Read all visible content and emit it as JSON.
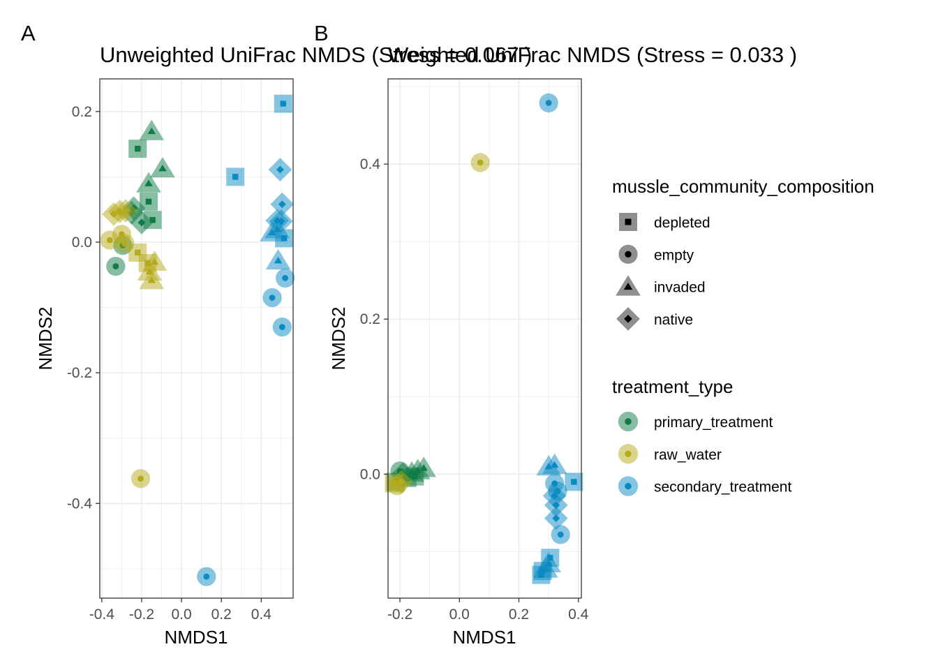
{
  "panel_labels": [
    "A",
    "B"
  ],
  "colors": {
    "primary_treatment": "#0f7b45",
    "raw_water": "#b5aa1c",
    "secondary_treatment": "#0b8bc3",
    "grid": "#ebebeb",
    "axis_text": "#4d4d4d"
  },
  "shape_icons": {
    "depleted": "square",
    "empty": "circle",
    "invaded": "triangle",
    "native": "diamond"
  },
  "legend": {
    "shape_title": "mussle_community_composition",
    "shape_items": [
      "depleted",
      "empty",
      "invaded",
      "native"
    ],
    "color_title": "treatment_type",
    "color_items": [
      "primary_treatment",
      "raw_water",
      "secondary_treatment"
    ]
  },
  "chart_data": [
    {
      "type": "scatter",
      "title": "Unweighted UniFrac NMDS (Stress = 0.067 )",
      "xlabel": "NMDS1",
      "ylabel": "NMDS2",
      "xlim": [
        -0.41,
        0.56
      ],
      "ylim": [
        -0.545,
        0.25
      ],
      "xticks": [
        -0.4,
        -0.2,
        0.0,
        0.2,
        0.4
      ],
      "xtick_labels": [
        "-0.4",
        "-0.2",
        "0.0",
        "0.2",
        "0.4"
      ],
      "yticks": [
        -0.4,
        -0.2,
        0.0,
        0.2
      ],
      "ytick_labels": [
        "-0.4",
        "-0.2",
        "0.0",
        "0.2"
      ],
      "grid": true,
      "points": [
        {
          "x": -0.22,
          "y": 0.143,
          "shape": "depleted",
          "treatment": "primary_treatment"
        },
        {
          "x": -0.15,
          "y": 0.17,
          "shape": "invaded",
          "treatment": "primary_treatment"
        },
        {
          "x": -0.095,
          "y": 0.113,
          "shape": "invaded",
          "treatment": "primary_treatment"
        },
        {
          "x": -0.165,
          "y": 0.09,
          "shape": "invaded",
          "treatment": "primary_treatment"
        },
        {
          "x": -0.165,
          "y": 0.062,
          "shape": "depleted",
          "treatment": "primary_treatment"
        },
        {
          "x": -0.24,
          "y": 0.052,
          "shape": "native",
          "treatment": "primary_treatment"
        },
        {
          "x": -0.25,
          "y": 0.045,
          "shape": "native",
          "treatment": "primary_treatment"
        },
        {
          "x": -0.2,
          "y": 0.03,
          "shape": "native",
          "treatment": "primary_treatment"
        },
        {
          "x": -0.145,
          "y": 0.034,
          "shape": "depleted",
          "treatment": "primary_treatment"
        },
        {
          "x": -0.33,
          "y": -0.037,
          "shape": "empty",
          "treatment": "primary_treatment"
        },
        {
          "x": -0.295,
          "y": -0.005,
          "shape": "empty",
          "treatment": "primary_treatment"
        },
        {
          "x": -0.36,
          "y": 0.003,
          "shape": "empty",
          "treatment": "raw_water"
        },
        {
          "x": -0.34,
          "y": 0.043,
          "shape": "native",
          "treatment": "raw_water"
        },
        {
          "x": -0.31,
          "y": 0.047,
          "shape": "native",
          "treatment": "raw_water"
        },
        {
          "x": -0.28,
          "y": 0.048,
          "shape": "native",
          "treatment": "raw_water"
        },
        {
          "x": -0.3,
          "y": 0.012,
          "shape": "empty",
          "treatment": "raw_water"
        },
        {
          "x": -0.285,
          "y": -0.002,
          "shape": "empty",
          "treatment": "raw_water"
        },
        {
          "x": -0.22,
          "y": -0.016,
          "shape": "depleted",
          "treatment": "raw_water"
        },
        {
          "x": -0.17,
          "y": -0.032,
          "shape": "depleted",
          "treatment": "raw_water"
        },
        {
          "x": -0.135,
          "y": -0.03,
          "shape": "invaded",
          "treatment": "raw_water"
        },
        {
          "x": -0.16,
          "y": -0.045,
          "shape": "invaded",
          "treatment": "raw_water"
        },
        {
          "x": -0.15,
          "y": -0.058,
          "shape": "invaded",
          "treatment": "raw_water"
        },
        {
          "x": -0.205,
          "y": -0.362,
          "shape": "empty",
          "treatment": "raw_water"
        },
        {
          "x": 0.51,
          "y": 0.212,
          "shape": "depleted",
          "treatment": "secondary_treatment"
        },
        {
          "x": 0.27,
          "y": 0.1,
          "shape": "depleted",
          "treatment": "secondary_treatment"
        },
        {
          "x": 0.495,
          "y": 0.111,
          "shape": "native",
          "treatment": "secondary_treatment"
        },
        {
          "x": 0.505,
          "y": 0.058,
          "shape": "native",
          "treatment": "secondary_treatment"
        },
        {
          "x": 0.48,
          "y": 0.033,
          "shape": "native",
          "treatment": "secondary_treatment"
        },
        {
          "x": 0.5,
          "y": 0.032,
          "shape": "native",
          "treatment": "secondary_treatment"
        },
        {
          "x": 0.455,
          "y": 0.015,
          "shape": "invaded",
          "treatment": "secondary_treatment"
        },
        {
          "x": 0.48,
          "y": 0.02,
          "shape": "invaded",
          "treatment": "secondary_treatment"
        },
        {
          "x": 0.515,
          "y": 0.006,
          "shape": "depleted",
          "treatment": "secondary_treatment"
        },
        {
          "x": 0.485,
          "y": -0.028,
          "shape": "invaded",
          "treatment": "secondary_treatment"
        },
        {
          "x": 0.52,
          "y": -0.055,
          "shape": "empty",
          "treatment": "secondary_treatment"
        },
        {
          "x": 0.455,
          "y": -0.085,
          "shape": "empty",
          "treatment": "secondary_treatment"
        },
        {
          "x": 0.505,
          "y": -0.13,
          "shape": "empty",
          "treatment": "secondary_treatment"
        },
        {
          "x": 0.125,
          "y": -0.512,
          "shape": "empty",
          "treatment": "secondary_treatment"
        }
      ]
    },
    {
      "type": "scatter",
      "title": "Weighted UniFrac NMDS (Stress = 0.033 )",
      "xlabel": "NMDS1",
      "ylabel": "NMDS2",
      "xlim": [
        -0.24,
        0.41
      ],
      "ylim": [
        -0.16,
        0.51
      ],
      "xticks": [
        -0.2,
        0.0,
        0.2,
        0.4
      ],
      "xtick_labels": [
        "-0.2",
        "0.0",
        "0.2",
        "0.4"
      ],
      "yticks": [
        0.0,
        0.2,
        0.4
      ],
      "ytick_labels": [
        "0.0",
        "0.2",
        "0.4"
      ],
      "grid": true,
      "points": [
        {
          "x": -0.12,
          "y": 0.008,
          "shape": "invaded",
          "treatment": "primary_treatment"
        },
        {
          "x": -0.14,
          "y": 0.005,
          "shape": "invaded",
          "treatment": "primary_treatment"
        },
        {
          "x": -0.16,
          "y": 0.002,
          "shape": "invaded",
          "treatment": "primary_treatment"
        },
        {
          "x": -0.15,
          "y": -0.003,
          "shape": "depleted",
          "treatment": "primary_treatment"
        },
        {
          "x": -0.175,
          "y": -0.005,
          "shape": "depleted",
          "treatment": "primary_treatment"
        },
        {
          "x": -0.19,
          "y": 0.0,
          "shape": "native",
          "treatment": "primary_treatment"
        },
        {
          "x": -0.2,
          "y": 0.004,
          "shape": "empty",
          "treatment": "primary_treatment"
        },
        {
          "x": -0.215,
          "y": -0.01,
          "shape": "depleted",
          "treatment": "primary_treatment"
        },
        {
          "x": -0.195,
          "y": -0.01,
          "shape": "native",
          "treatment": "raw_water"
        },
        {
          "x": -0.21,
          "y": -0.015,
          "shape": "empty",
          "treatment": "raw_water"
        },
        {
          "x": -0.22,
          "y": -0.012,
          "shape": "depleted",
          "treatment": "raw_water"
        },
        {
          "x": 0.07,
          "y": 0.402,
          "shape": "empty",
          "treatment": "raw_water"
        },
        {
          "x": 0.3,
          "y": 0.479,
          "shape": "empty",
          "treatment": "secondary_treatment"
        },
        {
          "x": 0.3,
          "y": 0.01,
          "shape": "invaded",
          "treatment": "secondary_treatment"
        },
        {
          "x": 0.32,
          "y": 0.012,
          "shape": "invaded",
          "treatment": "secondary_treatment"
        },
        {
          "x": 0.385,
          "y": -0.01,
          "shape": "depleted",
          "treatment": "secondary_treatment"
        },
        {
          "x": 0.32,
          "y": -0.012,
          "shape": "empty",
          "treatment": "secondary_treatment"
        },
        {
          "x": 0.33,
          "y": -0.022,
          "shape": "empty",
          "treatment": "secondary_treatment"
        },
        {
          "x": 0.32,
          "y": -0.028,
          "shape": "native",
          "treatment": "secondary_treatment"
        },
        {
          "x": 0.325,
          "y": -0.04,
          "shape": "native",
          "treatment": "secondary_treatment"
        },
        {
          "x": 0.325,
          "y": -0.057,
          "shape": "native",
          "treatment": "secondary_treatment"
        },
        {
          "x": 0.34,
          "y": -0.078,
          "shape": "empty",
          "treatment": "secondary_treatment"
        },
        {
          "x": 0.305,
          "y": -0.108,
          "shape": "depleted",
          "treatment": "secondary_treatment"
        },
        {
          "x": 0.3,
          "y": -0.115,
          "shape": "invaded",
          "treatment": "secondary_treatment"
        },
        {
          "x": 0.29,
          "y": -0.122,
          "shape": "invaded",
          "treatment": "secondary_treatment"
        },
        {
          "x": 0.28,
          "y": -0.125,
          "shape": "depleted",
          "treatment": "secondary_treatment"
        },
        {
          "x": 0.275,
          "y": -0.13,
          "shape": "depleted",
          "treatment": "secondary_treatment"
        }
      ]
    }
  ]
}
